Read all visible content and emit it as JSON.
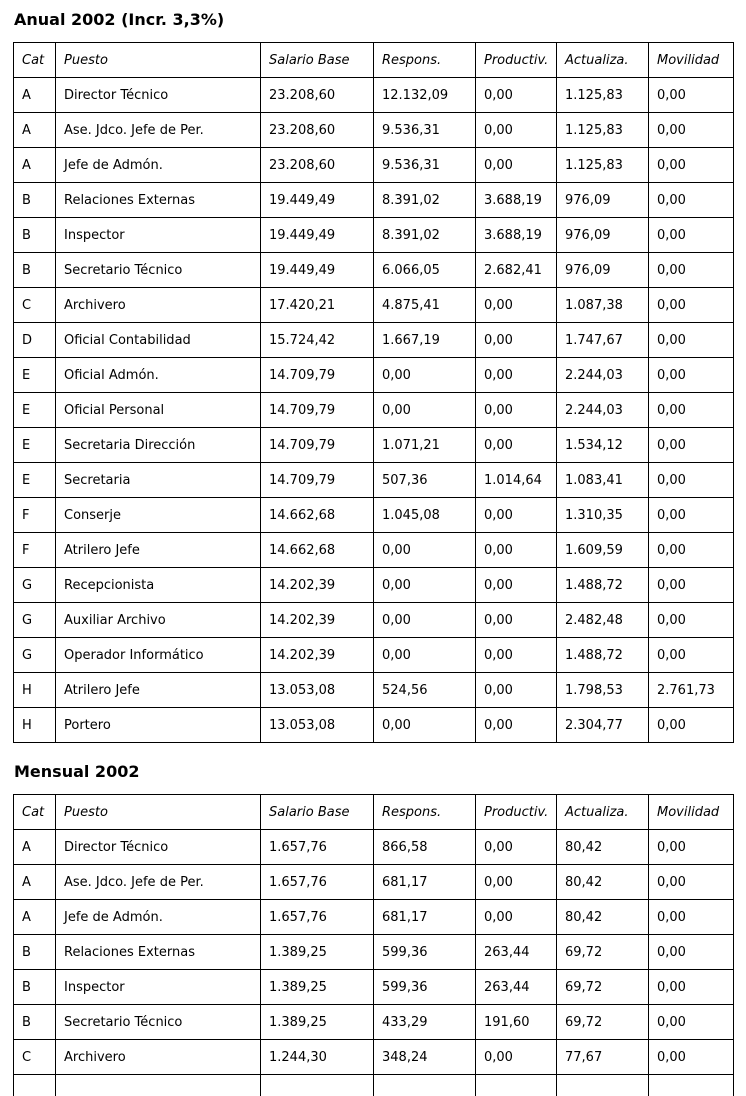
{
  "colors": {
    "border": "#000000",
    "text": "#000000",
    "background": "#ffffff"
  },
  "anual": {
    "title": "Anual 2002 (Incr. 3,3%)",
    "columns": [
      "Cat",
      "Puesto",
      "Salario Base",
      "Respons.",
      "Productiv.",
      "Actualiza.",
      "Movilidad"
    ],
    "rows": [
      [
        "A",
        "Director Técnico",
        "23.208,60",
        "12.132,09",
        "0,00",
        "1.125,83",
        "0,00"
      ],
      [
        "A",
        "Ase. Jdco. Jefe de Per.",
        "23.208,60",
        "9.536,31",
        "0,00",
        "1.125,83",
        "0,00"
      ],
      [
        "A",
        "Jefe de Admón.",
        "23.208,60",
        "9.536,31",
        "0,00",
        "1.125,83",
        "0,00"
      ],
      [
        "B",
        "Relaciones Externas",
        "19.449,49",
        "8.391,02",
        "3.688,19",
        "976,09",
        "0,00"
      ],
      [
        "B",
        "Inspector",
        "19.449,49",
        "8.391,02",
        "3.688,19",
        "976,09",
        "0,00"
      ],
      [
        "B",
        "Secretario Técnico",
        "19.449,49",
        "6.066,05",
        "2.682,41",
        "976,09",
        "0,00"
      ],
      [
        "C",
        "Archivero",
        "17.420,21",
        "4.875,41",
        "0,00",
        "1.087,38",
        "0,00"
      ],
      [
        "D",
        "Oficial Contabilidad",
        "15.724,42",
        "1.667,19",
        "0,00",
        "1.747,67",
        "0,00"
      ],
      [
        "E",
        "Oficial Admón.",
        "14.709,79",
        "0,00",
        "0,00",
        "2.244,03",
        "0,00"
      ],
      [
        "E",
        "Oficial Personal",
        "14.709,79",
        "0,00",
        "0,00",
        "2.244,03",
        "0,00"
      ],
      [
        "E",
        "Secretaria Dirección",
        "14.709,79",
        "1.071,21",
        "0,00",
        "1.534,12",
        "0,00"
      ],
      [
        "E",
        "Secretaria",
        "14.709,79",
        "507,36",
        "1.014,64",
        "1.083,41",
        "0,00"
      ],
      [
        "F",
        "Conserje",
        "14.662,68",
        "1.045,08",
        "0,00",
        "1.310,35",
        "0,00"
      ],
      [
        "F",
        "Atrilero Jefe",
        "14.662,68",
        "0,00",
        "0,00",
        "1.609,59",
        "0,00"
      ],
      [
        "G",
        "Recepcionista",
        "14.202,39",
        "0,00",
        "0,00",
        "1.488,72",
        "0,00"
      ],
      [
        "G",
        "Auxiliar Archivo",
        "14.202,39",
        "0,00",
        "0,00",
        "2.482,48",
        "0,00"
      ],
      [
        "G",
        "Operador Informático",
        "14.202,39",
        "0,00",
        "0,00",
        "1.488,72",
        "0,00"
      ],
      [
        "H",
        "Atrilero Jefe",
        "13.053,08",
        "524,56",
        "0,00",
        "1.798,53",
        "2.761,73"
      ],
      [
        "H",
        "Portero",
        "13.053,08",
        "0,00",
        "0,00",
        "2.304,77",
        "0,00"
      ]
    ]
  },
  "mensual": {
    "title": "Mensual 2002",
    "columns": [
      "Cat",
      "Puesto",
      "Salario Base",
      "Respons.",
      "Productiv.",
      "Actualiza.",
      "Movilidad"
    ],
    "rows": [
      [
        "A",
        "Director Técnico",
        "1.657,76",
        "866,58",
        "0,00",
        "80,42",
        "0,00"
      ],
      [
        "A",
        "Ase. Jdco. Jefe de Per.",
        "1.657,76",
        "681,17",
        "0,00",
        "80,42",
        "0,00"
      ],
      [
        "A",
        "Jefe de Admón.",
        "1.657,76",
        "681,17",
        "0,00",
        "80,42",
        "0,00"
      ],
      [
        "B",
        "Relaciones Externas",
        "1.389,25",
        "599,36",
        "263,44",
        "69,72",
        "0,00"
      ],
      [
        "B",
        "Inspector",
        "1.389,25",
        "599,36",
        "263,44",
        "69,72",
        "0,00"
      ],
      [
        "B",
        "Secretario Técnico",
        "1.389,25",
        "433,29",
        "191,60",
        "69,72",
        "0,00"
      ],
      [
        "C",
        "Archivero",
        "1.244,30",
        "348,24",
        "0,00",
        "77,67",
        "0,00"
      ]
    ]
  }
}
